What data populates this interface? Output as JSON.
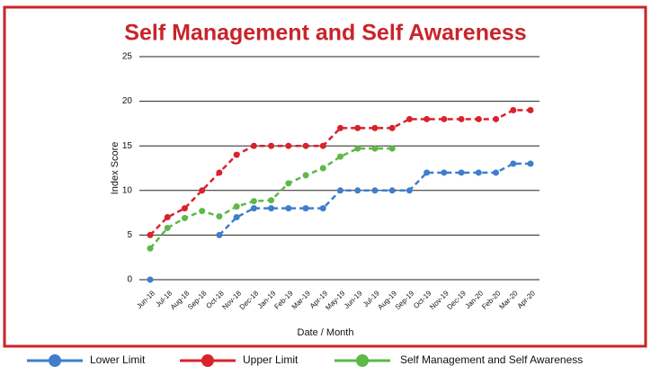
{
  "chart_data": {
    "type": "line",
    "title": "Self Management and Self Awareness",
    "xlabel": "Date / Month",
    "ylabel": "Index Score",
    "categories": [
      "Jun-18",
      "Jul-18",
      "Aug-18",
      "Sep-18",
      "Oct-18",
      "Nov-18",
      "Dec-18",
      "Jan-19",
      "Feb-19",
      "Mar-19",
      "Apr-19",
      "May-19",
      "Jun-19",
      "Jul-19",
      "Aug-19",
      "Sep-19",
      "Oct-19",
      "Nov-19",
      "Dec-19",
      "Jan-20",
      "Feb-20",
      "Mar-20",
      "Apr-20"
    ],
    "series": [
      {
        "name": "Lower Limit",
        "color": "#3f7ecb",
        "values": [
          0,
          null,
          null,
          null,
          5,
          7,
          8,
          8,
          8,
          8,
          8,
          10,
          10,
          10,
          10,
          10,
          12,
          12,
          12,
          12,
          12,
          13,
          13
        ]
      },
      {
        "name": "Upper Limit",
        "color": "#d8232a",
        "values": [
          5,
          7,
          8,
          10,
          12,
          14,
          15,
          15,
          15,
          15,
          15,
          17,
          17,
          17,
          17,
          18,
          18,
          18,
          18,
          18,
          18,
          19,
          19
        ]
      },
      {
        "name": "Self Management and Self Awareness",
        "color": "#5db848",
        "values": [
          3.5,
          5.8,
          6.9,
          7.7,
          7.1,
          8.2,
          8.8,
          8.9,
          10.8,
          11.7,
          12.5,
          13.8,
          14.7,
          14.7,
          14.7,
          null,
          null,
          null,
          null,
          null,
          null,
          null,
          null
        ]
      }
    ],
    "ylim": [
      0,
      25
    ],
    "yticks": [
      0,
      5,
      10,
      15,
      20,
      25
    ],
    "grid": true,
    "legend": "bottom",
    "line_style": "dashed"
  }
}
